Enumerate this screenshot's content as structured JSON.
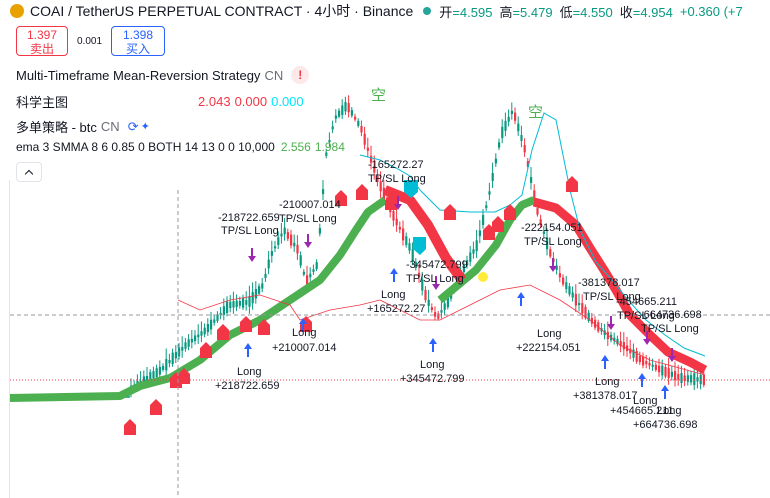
{
  "header": {
    "title": "COAI / TetherUS PERPETUAL CONTRACT · 4小时 · Binance",
    "ohlc": [
      {
        "label": "开",
        "value": "=4.595"
      },
      {
        "label": "高",
        "value": "=5.479"
      },
      {
        "label": "低",
        "value": "=4.550"
      },
      {
        "label": "收",
        "value": "=4.954"
      }
    ],
    "change": "+0.360 (+7"
  },
  "trade": {
    "sell_price": "1.397",
    "sell_label": "卖出",
    "spread": "0.001",
    "buy_price": "1.398",
    "buy_label": "买入"
  },
  "legends": {
    "strategy_name": "Multi-Timeframe Mean-Reversion Strategy",
    "strategy_tag": "CN",
    "main_name": "科学主图",
    "main_values": [
      "2.043",
      "0.000",
      "0.000"
    ],
    "multi_name": "多单策略 - btc",
    "multi_tag": "CN",
    "ema_text": "ema 3 SMMA 8 6 0.85 0 BOTH 14 13 0 0 10,000",
    "ema_values": [
      "2.556",
      "1.984"
    ]
  },
  "colors": {
    "up": "#089981",
    "down": "#f23645",
    "band_green": "#4caf50",
    "band_red": "#f23645",
    "cyan": "#00bcd4",
    "long_arrow": "#2962ff",
    "exit_arrow": "#9c27b0",
    "accent_blue": "#2962ff"
  },
  "chart": {
    "kong_labels": [
      "空",
      "空"
    ],
    "trades": [
      {
        "entry": "Long",
        "amount": "+218722.659",
        "exit_value": "-218722.659",
        "exit_label": "TP/SL Long"
      },
      {
        "entry": "Long",
        "amount": "+210007.014",
        "exit_value": "-210007.014",
        "exit_label": "TP/SL Long"
      },
      {
        "entry": "Long",
        "amount": "+165272.27",
        "exit_value": "-165272.27",
        "exit_label": "TP/SL Long"
      },
      {
        "entry": "Long",
        "amount": "+345472.799",
        "exit_value": "-345472.799",
        "exit_label": "TP/SL Long"
      },
      {
        "entry": "Long",
        "amount": "+222154.051",
        "exit_value": "-222154.051",
        "exit_label": "TP/SL Long"
      },
      {
        "entry": "Long",
        "amount": "+381378.017",
        "exit_value": "-381378.017",
        "exit_label": "TP/SL Long"
      },
      {
        "entry": "Long",
        "amount": "+454665.211",
        "exit_value": "-454665.211",
        "exit_label": "TP/SL Long"
      },
      {
        "entry": "Long",
        "amount": "+664736.698",
        "exit_value": "-664736.698",
        "exit_label": "TP/SL Long"
      }
    ]
  }
}
